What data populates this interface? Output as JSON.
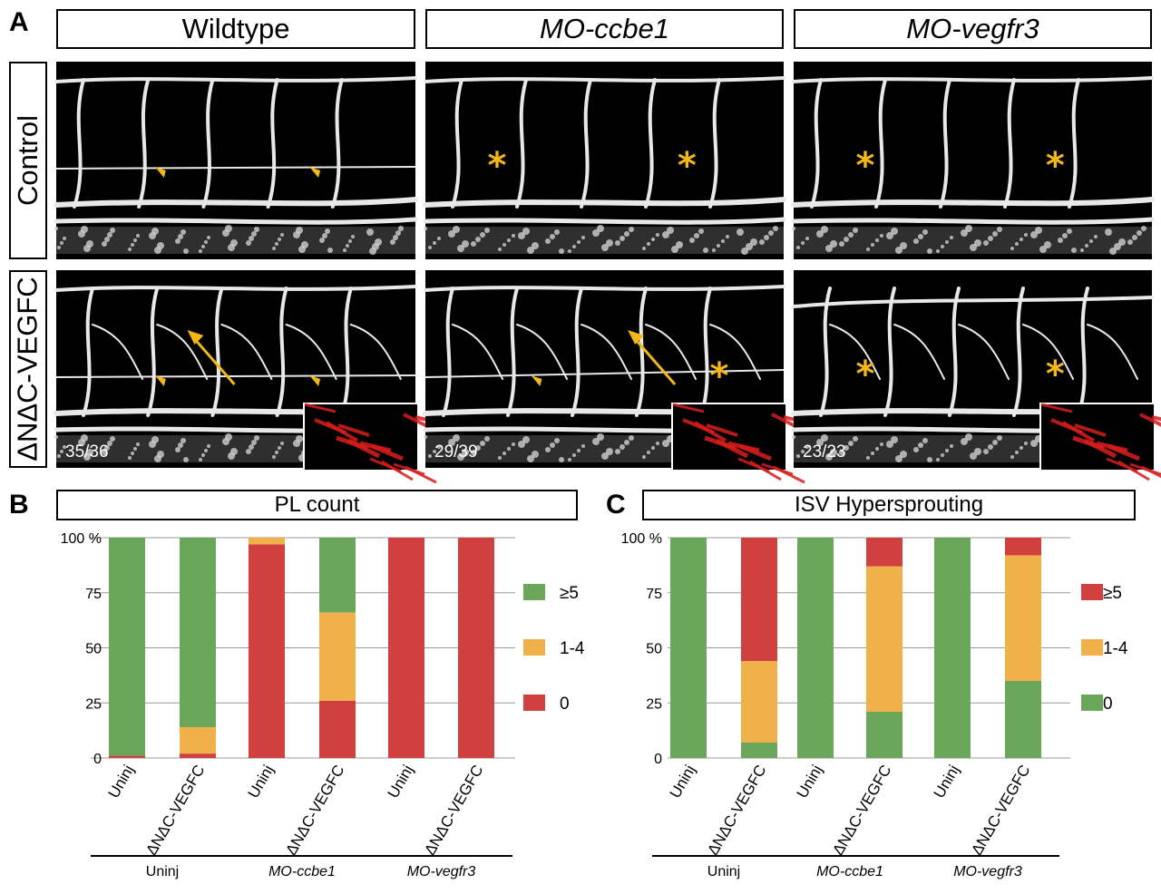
{
  "panels": {
    "a": "A",
    "b": "B",
    "c": "C"
  },
  "columns": [
    "Wildtype",
    "MO-ccbe1",
    "MO-vegfr3"
  ],
  "rows": [
    "Control",
    "ΔNΔC-VEGFC"
  ],
  "counts": [
    "35/36",
    "29/39",
    "23/23"
  ],
  "star": "*",
  "colors": {
    "green": "#6aa75a",
    "orange": "#f0b04a",
    "red": "#d0403e",
    "arrow": "#f2b818",
    "inset": "#d71d1d"
  },
  "icons": {
    "arrowhead": "yellow-arrowhead-icon",
    "arrow": "yellow-arrow-icon",
    "star": "yellow-asterisk-icon"
  },
  "chart_data": [
    {
      "type": "bar",
      "title": "PL count",
      "categories": [
        "Uninj",
        "ΔNΔC-VEGFC",
        "Uninj",
        "ΔNΔC-VEGFC",
        "Uninj",
        "ΔNΔC-VEGFC"
      ],
      "groups": [
        "Uninj",
        "MO-ccbe1",
        "MO-vegfr3"
      ],
      "ytick_labels": [
        "100 %",
        "75",
        "50",
        "25",
        "0"
      ],
      "ylim": [
        0,
        100
      ],
      "stacked": true,
      "series": [
        {
          "name": "0",
          "color": "#d0403e",
          "values": [
            1,
            2,
            97,
            26,
            100,
            100
          ]
        },
        {
          "name": "1-4",
          "color": "#f0b04a",
          "values": [
            0,
            12,
            3,
            40,
            0,
            0
          ]
        },
        {
          "name": "≥5",
          "color": "#6aa75a",
          "values": [
            99,
            86,
            0,
            34,
            0,
            0
          ]
        }
      ],
      "legend": [
        "≥5",
        "1-4",
        "0"
      ]
    },
    {
      "type": "bar",
      "title": "ISV Hypersprouting",
      "categories": [
        "Uninj",
        "ΔNΔC-VEGFC",
        "Uninj",
        "ΔNΔC-VEGFC",
        "Uninj",
        "ΔNΔC-VEGFC"
      ],
      "groups": [
        "Uninj",
        "MO-ccbe1",
        "MO-vegfr3"
      ],
      "ytick_labels": [
        "100 %",
        "75",
        "50",
        "25",
        "0"
      ],
      "ylim": [
        0,
        100
      ],
      "stacked": true,
      "series": [
        {
          "name": "0",
          "color": "#6aa75a",
          "values": [
            100,
            7,
            100,
            21,
            100,
            35
          ]
        },
        {
          "name": "1-4",
          "color": "#f0b04a",
          "values": [
            0,
            37,
            0,
            66,
            0,
            57
          ]
        },
        {
          "name": "≥5",
          "color": "#d0403e",
          "values": [
            0,
            56,
            0,
            13,
            0,
            8
          ]
        }
      ],
      "legend": [
        "≥5",
        "1-4",
        "0"
      ]
    }
  ]
}
